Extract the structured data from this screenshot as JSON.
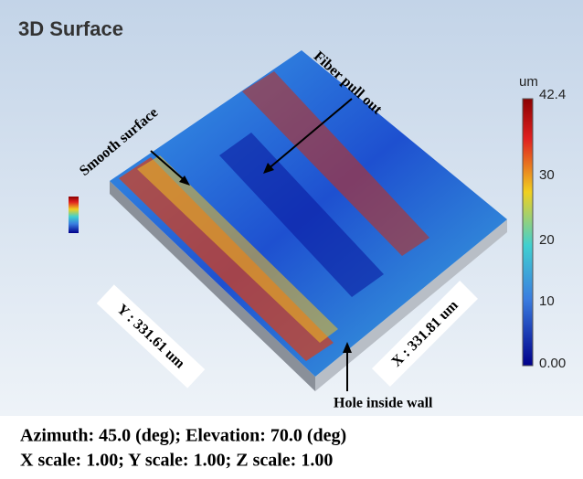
{
  "panel": {
    "title": "3D Surface"
  },
  "colorbar": {
    "unit": "um",
    "ticks": [
      "42.4",
      "30",
      "20",
      "10",
      "0.00"
    ]
  },
  "annotations": {
    "smooth": "Smooth surface",
    "fiber": "Fiber pull out",
    "hole": "Hole inside wall",
    "y_dim": "Y : 331.61 um",
    "x_dim": "X : 331.81 um"
  },
  "caption": [
    "Azimuth: 45.0 (deg); Elevation: 70.0 (deg)",
    "X scale: 1.00; Y scale: 1.00; Z scale: 1.00"
  ]
}
